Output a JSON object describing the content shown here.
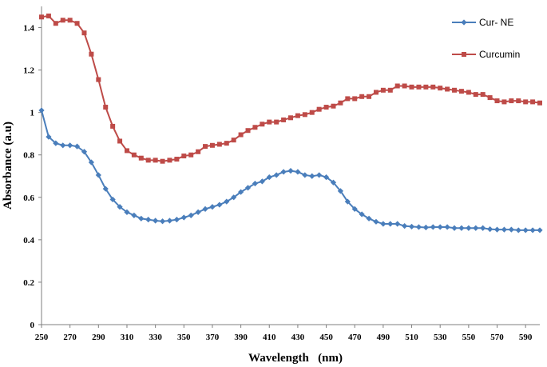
{
  "chart_data": {
    "type": "line",
    "title": "",
    "xlabel": "Wavelength   (nm)",
    "ylabel": "Absorbance (a.u)",
    "xlim": [
      250,
      600
    ],
    "ylim": [
      0,
      1.5
    ],
    "x_ticks": [
      "250",
      "270",
      "290",
      "310",
      "330",
      "350",
      "370",
      "390",
      "410",
      "430",
      "450",
      "470",
      "490",
      "510",
      "530",
      "550",
      "570",
      "590"
    ],
    "y_ticks": [
      "0",
      "0.2",
      "0.4",
      "0.6",
      "0.8",
      "1",
      "1.2",
      "1.4"
    ],
    "grid": false,
    "legend_position": "top-right",
    "series": [
      {
        "name": "Cur- NE",
        "color": "#4a7ebb",
        "marker": "diamond",
        "x": [
          250,
          255,
          260,
          265,
          270,
          275,
          280,
          285,
          290,
          295,
          300,
          305,
          310,
          315,
          320,
          325,
          330,
          335,
          340,
          345,
          350,
          355,
          360,
          365,
          370,
          375,
          380,
          385,
          390,
          395,
          400,
          405,
          410,
          415,
          420,
          425,
          430,
          435,
          440,
          445,
          450,
          455,
          460,
          465,
          470,
          475,
          480,
          485,
          490,
          495,
          500,
          505,
          510,
          515,
          520,
          525,
          530,
          535,
          540,
          545,
          550,
          555,
          560,
          565,
          570,
          575,
          580,
          585,
          590,
          595,
          600
        ],
        "y": [
          1.01,
          0.885,
          0.855,
          0.845,
          0.845,
          0.84,
          0.815,
          0.765,
          0.705,
          0.64,
          0.59,
          0.555,
          0.53,
          0.515,
          0.5,
          0.495,
          0.49,
          0.487,
          0.49,
          0.495,
          0.505,
          0.515,
          0.53,
          0.545,
          0.555,
          0.565,
          0.58,
          0.6,
          0.625,
          0.645,
          0.665,
          0.675,
          0.695,
          0.705,
          0.72,
          0.725,
          0.72,
          0.705,
          0.7,
          0.705,
          0.695,
          0.67,
          0.63,
          0.58,
          0.545,
          0.52,
          0.5,
          0.485,
          0.475,
          0.475,
          0.475,
          0.465,
          0.462,
          0.46,
          0.458,
          0.46,
          0.46,
          0.46,
          0.455,
          0.455,
          0.455,
          0.455,
          0.455,
          0.45,
          0.448,
          0.448,
          0.448,
          0.445,
          0.445,
          0.445,
          0.445
        ]
      },
      {
        "name": "Curcumin",
        "color": "#be4b48",
        "marker": "square",
        "x": [
          250,
          255,
          260,
          265,
          270,
          275,
          280,
          285,
          290,
          295,
          300,
          305,
          310,
          315,
          320,
          325,
          330,
          335,
          340,
          345,
          350,
          355,
          360,
          365,
          370,
          375,
          380,
          385,
          390,
          395,
          400,
          405,
          410,
          415,
          420,
          425,
          430,
          435,
          440,
          445,
          450,
          455,
          460,
          465,
          470,
          475,
          480,
          485,
          490,
          495,
          500,
          505,
          510,
          515,
          520,
          525,
          530,
          535,
          540,
          545,
          550,
          555,
          560,
          565,
          570,
          575,
          580,
          585,
          590,
          595,
          600
        ],
        "y": [
          1.45,
          1.455,
          1.42,
          1.435,
          1.435,
          1.42,
          1.375,
          1.275,
          1.155,
          1.025,
          0.935,
          0.865,
          0.82,
          0.8,
          0.785,
          0.775,
          0.775,
          0.77,
          0.775,
          0.78,
          0.795,
          0.8,
          0.815,
          0.84,
          0.845,
          0.85,
          0.855,
          0.87,
          0.895,
          0.915,
          0.93,
          0.945,
          0.955,
          0.955,
          0.965,
          0.975,
          0.985,
          0.99,
          1.0,
          1.015,
          1.025,
          1.03,
          1.045,
          1.065,
          1.065,
          1.075,
          1.075,
          1.095,
          1.105,
          1.105,
          1.125,
          1.125,
          1.12,
          1.12,
          1.12,
          1.12,
          1.115,
          1.11,
          1.105,
          1.1,
          1.095,
          1.085,
          1.085,
          1.07,
          1.055,
          1.05,
          1.055,
          1.055,
          1.05,
          1.05,
          1.045
        ]
      }
    ]
  }
}
